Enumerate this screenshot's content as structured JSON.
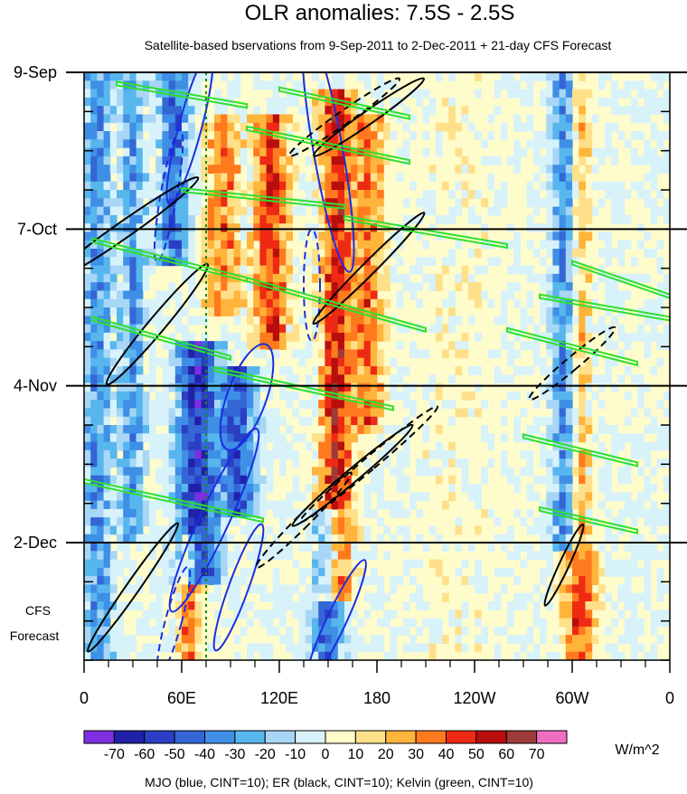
{
  "chart_data": {
    "type": "heatmap",
    "title": "OLR anomalies: 7.5S - 2.5S",
    "subtitle": "Satellite-based bservations from 9-Sep-2011 to 2-Dec-2011 + 21-day CFS Forecast",
    "x_ticks": [
      {
        "lon": 0,
        "label": "0"
      },
      {
        "lon": 60,
        "label": "60E"
      },
      {
        "lon": 120,
        "label": "120E"
      },
      {
        "lon": 180,
        "label": "180"
      },
      {
        "lon": 240,
        "label": "120W"
      },
      {
        "lon": 300,
        "label": "60W"
      },
      {
        "lon": 360,
        "label": "0"
      }
    ],
    "xlim": [
      0,
      360
    ],
    "time_axis": {
      "start": "9-Sep-2011",
      "observed_end_day": 84,
      "total_days": 105,
      "ticks": [
        {
          "day": 0,
          "label": "9-Sep"
        },
        {
          "day": 28,
          "label": "7-Oct"
        },
        {
          "day": 56,
          "label": "4-Nov"
        },
        {
          "day": 84,
          "label": "2-Dec"
        }
      ]
    },
    "forecast_label": [
      "CFS",
      "Forecast"
    ],
    "reference_lon": 75,
    "colorbar": {
      "levels": [
        -70,
        -60,
        -50,
        -40,
        -30,
        -20,
        -10,
        0,
        10,
        20,
        30,
        40,
        50,
        60,
        70
      ],
      "label_texts": [
        "-70",
        "-60",
        "-50",
        "-40",
        "-30",
        "-20",
        "-10",
        "0",
        "10",
        "20",
        "30",
        "40",
        "50",
        "60",
        "70"
      ],
      "colors": [
        "#7f2ee0",
        "#2020a8",
        "#2a3fc4",
        "#3466d6",
        "#3f8fe6",
        "#58b6ee",
        "#a8d6f6",
        "#d8f2fa",
        "#fffccb",
        "#ffe08a",
        "#ffb43c",
        "#ff7a1e",
        "#ee2a14",
        "#b80e0e",
        "#9e3a3a",
        "#f06ec0"
      ],
      "units": "W/m^2"
    },
    "contour_legend": "MJO (blue, CINT=10); ER (black, CINT=10); Kelvin (green, CINT=10)",
    "anomaly_features": [
      {
        "lon": 8,
        "day_start": 0,
        "day_end": 105,
        "value": -35,
        "width_deg": 12
      },
      {
        "lon": 30,
        "day_start": 0,
        "day_end": 80,
        "value": -30,
        "width_deg": 10
      },
      {
        "lon": 55,
        "day_start": 0,
        "day_end": 30,
        "value": -45,
        "width_deg": 12
      },
      {
        "lon": 70,
        "day_start": 50,
        "day_end": 88,
        "value": -60,
        "width_deg": 18
      },
      {
        "lon": 95,
        "day_start": 55,
        "day_end": 75,
        "value": -50,
        "width_deg": 14
      },
      {
        "lon": 85,
        "day_start": 10,
        "day_end": 40,
        "value": 35,
        "width_deg": 14
      },
      {
        "lon": 115,
        "day_start": 10,
        "day_end": 45,
        "value": 45,
        "width_deg": 14
      },
      {
        "lon": 155,
        "day_start": 5,
        "day_end": 90,
        "value": 50,
        "width_deg": 14
      },
      {
        "lon": 175,
        "day_start": 10,
        "day_end": 60,
        "value": 35,
        "width_deg": 12
      },
      {
        "lon": 150,
        "day_start": 80,
        "day_end": 105,
        "value": -45,
        "width_deg": 12
      },
      {
        "lon": 65,
        "day_start": 85,
        "day_end": 105,
        "value": 35,
        "width_deg": 10
      },
      {
        "lon": 295,
        "day_start": 0,
        "day_end": 82,
        "value": -35,
        "width_deg": 10
      },
      {
        "lon": 305,
        "day_start": 0,
        "day_end": 82,
        "value": 25,
        "width_deg": 8
      },
      {
        "lon": 305,
        "day_start": 88,
        "day_end": 105,
        "value": 40,
        "width_deg": 14
      },
      {
        "lon": 230,
        "day_start": 0,
        "day_end": 105,
        "value": 5,
        "width_deg": 40
      }
    ],
    "contour_series": [
      {
        "name": "MJO",
        "color": "#1a2ee0",
        "ellipses": [
          {
            "lon": 65,
            "day": 10,
            "rlon": 7,
            "rday": 14,
            "tilt": 15,
            "dashed": false
          },
          {
            "lon": 52,
            "day": 22,
            "rlon": 5,
            "rday": 12,
            "tilt": 10,
            "dashed": true
          },
          {
            "lon": 150,
            "day": 14,
            "rlon": 9,
            "rday": 22,
            "tilt": -10,
            "dashed": false
          },
          {
            "lon": 140,
            "day": 38,
            "rlon": 5,
            "rday": 10,
            "tilt": 0,
            "dashed": true
          },
          {
            "lon": 100,
            "day": 58,
            "rlon": 12,
            "rday": 10,
            "tilt": 20,
            "dashed": false
          },
          {
            "lon": 80,
            "day": 80,
            "rlon": 9,
            "rday": 18,
            "tilt": 25,
            "dashed": false
          },
          {
            "lon": 95,
            "day": 92,
            "rlon": 6,
            "rday": 12,
            "tilt": 20,
            "dashed": false
          },
          {
            "lon": 155,
            "day": 98,
            "rlon": 6,
            "rday": 12,
            "tilt": 25,
            "dashed": false
          },
          {
            "lon": 55,
            "day": 98,
            "rlon": 5,
            "rday": 10,
            "tilt": 15,
            "dashed": true
          }
        ]
      },
      {
        "name": "ER",
        "color": "#000000",
        "ellipses": [
          {
            "lon": 25,
            "day": 28,
            "rlon": 5,
            "rday": 16,
            "tilt": 55,
            "dashed": false
          },
          {
            "lon": 45,
            "day": 45,
            "rlon": 5,
            "rday": 14,
            "tilt": 40,
            "dashed": false
          },
          {
            "lon": 160,
            "day": 8,
            "rlon": 4,
            "rday": 12,
            "tilt": 55,
            "dashed": true
          },
          {
            "lon": 175,
            "day": 8,
            "rlon": 4,
            "rday": 12,
            "tilt": 55,
            "dashed": false
          },
          {
            "lon": 175,
            "day": 35,
            "rlon": 4,
            "rday": 14,
            "tilt": 45,
            "dashed": false
          },
          {
            "lon": 165,
            "day": 72,
            "rlon": 4,
            "rday": 14,
            "tilt": 50,
            "dashed": false
          },
          {
            "lon": 175,
            "day": 70,
            "rlon": 4,
            "rday": 16,
            "tilt": 50,
            "dashed": true
          },
          {
            "lon": 135,
            "day": 80,
            "rlon": 4,
            "rday": 12,
            "tilt": 45,
            "dashed": true
          },
          {
            "lon": 30,
            "day": 92,
            "rlon": 4,
            "rday": 14,
            "tilt": 35,
            "dashed": false
          },
          {
            "lon": 300,
            "day": 52,
            "rlon": 4,
            "rday": 10,
            "tilt": 50,
            "dashed": true
          },
          {
            "lon": 295,
            "day": 88,
            "rlon": 3,
            "rday": 8,
            "tilt": 25,
            "dashed": false
          }
        ]
      },
      {
        "name": "Kelvin",
        "color": "#2ee02e",
        "bands": [
          {
            "lon_start": 20,
            "lon_end": 100,
            "day_start": 2,
            "day_end": 6
          },
          {
            "lon_start": 120,
            "lon_end": 200,
            "day_start": 3,
            "day_end": 8
          },
          {
            "lon_start": 100,
            "lon_end": 200,
            "day_start": 10,
            "day_end": 16
          },
          {
            "lon_start": 60,
            "lon_end": 160,
            "day_start": 21,
            "day_end": 24
          },
          {
            "lon_start": 160,
            "lon_end": 260,
            "day_start": 26,
            "day_end": 31
          },
          {
            "lon_start": 5,
            "lon_end": 100,
            "day_start": 30,
            "day_end": 37
          },
          {
            "lon_start": 100,
            "lon_end": 210,
            "day_start": 37,
            "day_end": 46
          },
          {
            "lon_start": 5,
            "lon_end": 90,
            "day_start": 44,
            "day_end": 51
          },
          {
            "lon_start": 80,
            "lon_end": 190,
            "day_start": 53,
            "day_end": 60
          },
          {
            "lon_start": 260,
            "lon_end": 340,
            "day_start": 46,
            "day_end": 52
          },
          {
            "lon_start": 300,
            "lon_end": 360,
            "day_start": 34,
            "day_end": 40
          },
          {
            "lon_start": 280,
            "lon_end": 360,
            "day_start": 40,
            "day_end": 44
          },
          {
            "lon_start": 0,
            "lon_end": 110,
            "day_start": 73,
            "day_end": 80
          },
          {
            "lon_start": 270,
            "lon_end": 340,
            "day_start": 65,
            "day_end": 70
          },
          {
            "lon_start": 280,
            "lon_end": 340,
            "day_start": 78,
            "day_end": 82
          }
        ]
      }
    ]
  }
}
